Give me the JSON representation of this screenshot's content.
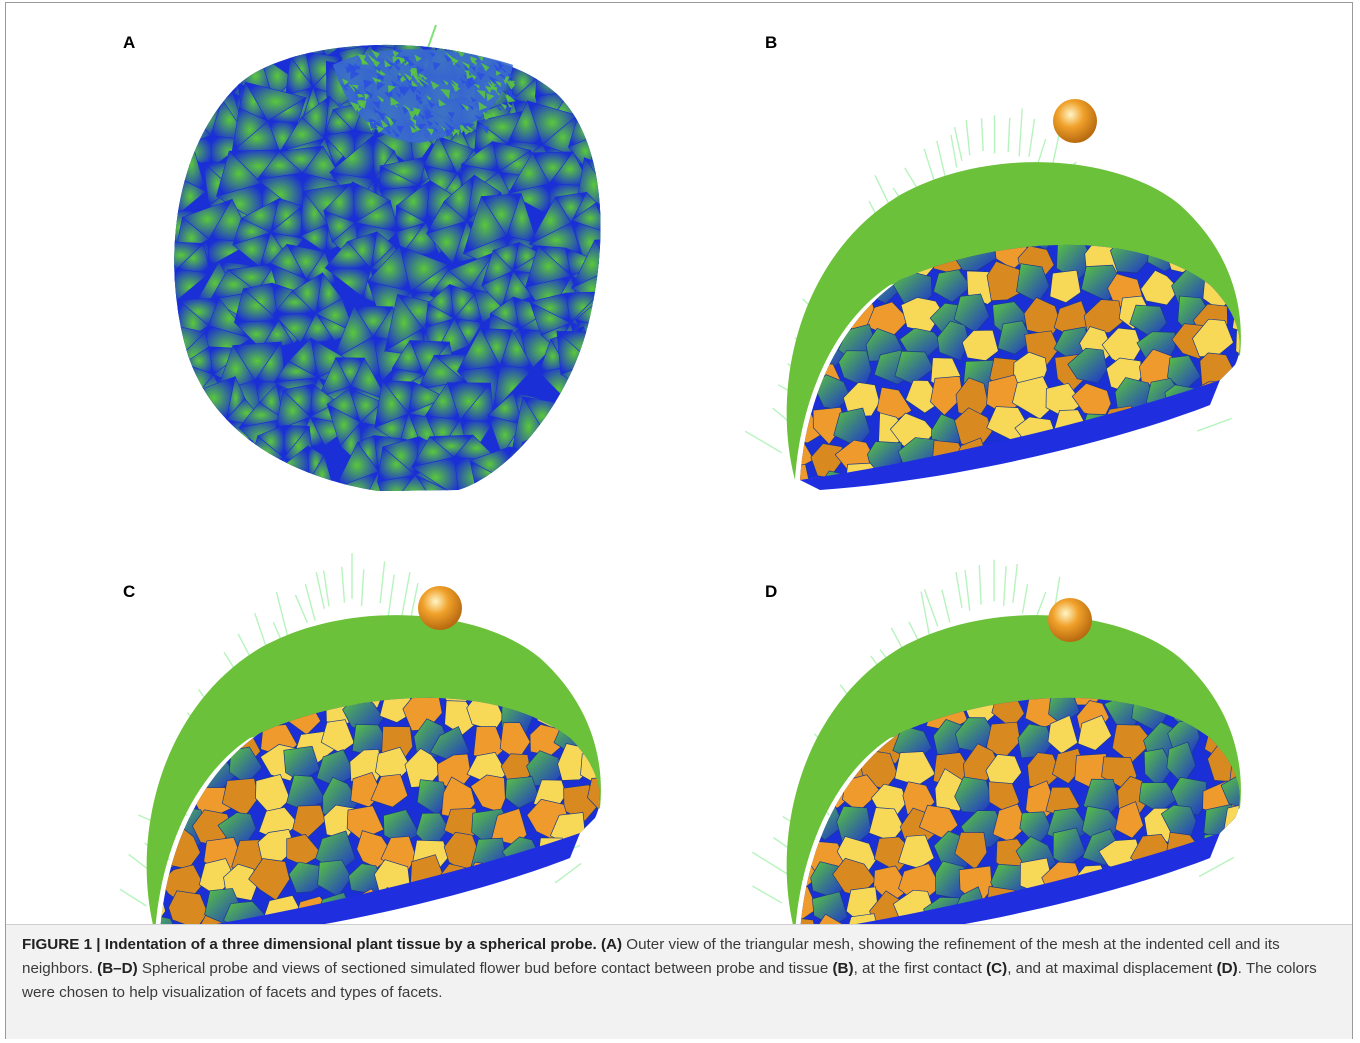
{
  "figure": {
    "panels": [
      {
        "id": "A",
        "label": "A"
      },
      {
        "id": "B",
        "label": "B"
      },
      {
        "id": "C",
        "label": "C"
      },
      {
        "id": "D",
        "label": "D"
      }
    ],
    "caption": {
      "title": "FIGURE 1 | Indentation of a three dimensional plant tissue by a spherical probe.",
      "a_label": "(A)",
      "a_text": " Outer view of the triangular mesh, showing the refinement of the mesh at the indented cell and its neighbors. ",
      "bd_label": "(B–D)",
      "bd_text": " Spherical probe and views of sectioned simulated flower bud before contact between probe and tissue ",
      "b_ref": "(B)",
      "mid1": ", at the first contact ",
      "c_ref": "(C)",
      "mid2": ", and at maximal displacement ",
      "d_ref": "(D)",
      "end": ". The colors were chosen to help visualization of facets and types of facets."
    },
    "colors": {
      "mesh_blue": "#1a2fd6",
      "mesh_green": "#5ac83a",
      "shell_green": "#6cc13a",
      "cell_orange": "#ef9a2c",
      "cell_yellow": "#f7d957",
      "probe_orange": "#f0a12a"
    }
  }
}
